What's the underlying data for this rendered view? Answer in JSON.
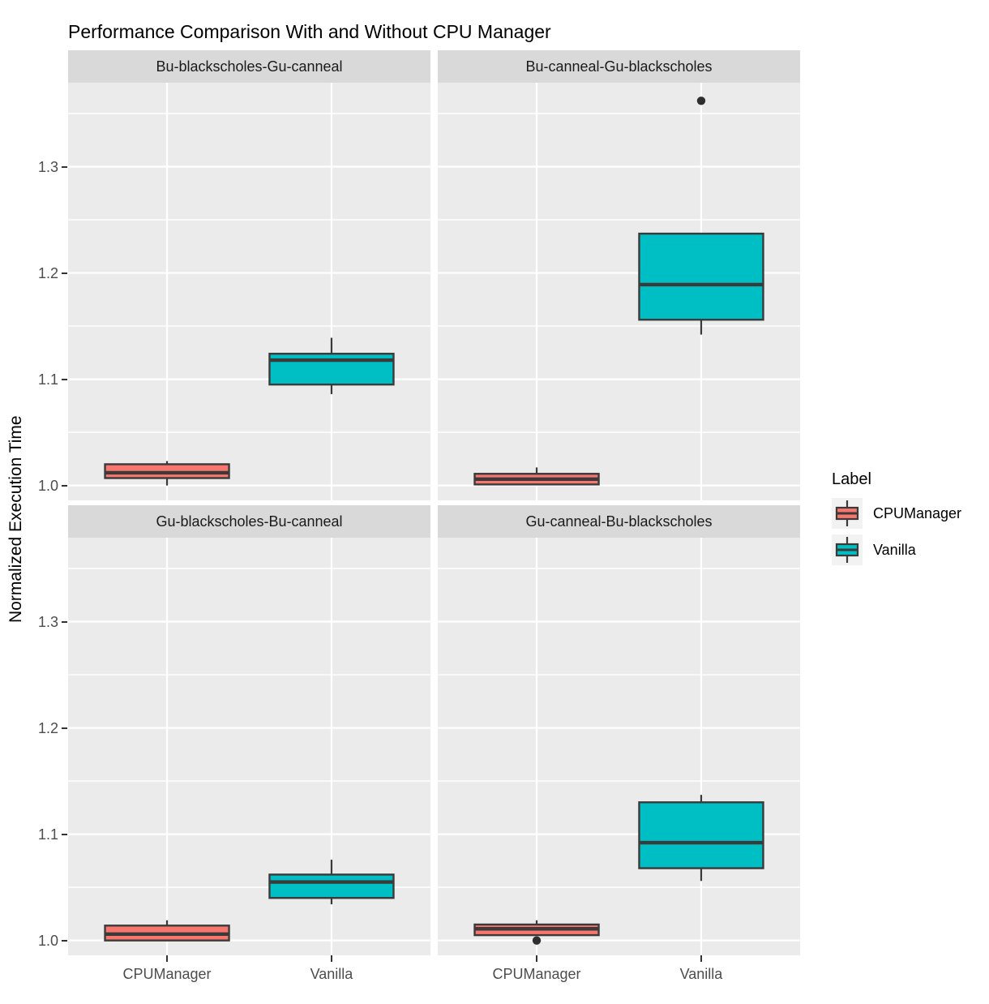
{
  "title": "Performance Comparison With and Without CPU Manager",
  "y_axis": {
    "label": "Normalized Execution Time",
    "ticks": [
      {
        "value": 1.0,
        "label": "1.0"
      },
      {
        "value": 1.1,
        "label": "1.1"
      },
      {
        "value": 1.2,
        "label": "1.2"
      },
      {
        "value": 1.3,
        "label": "1.3"
      }
    ],
    "minor_gridlines": [
      1.05,
      1.15,
      1.25,
      1.35
    ]
  },
  "x_axis": {
    "categories": [
      "CPUManager",
      "Vanilla"
    ]
  },
  "legend": {
    "title": "Label",
    "items": [
      {
        "label": "CPUManager",
        "color": "#F8766D"
      },
      {
        "label": "Vanilla",
        "color": "#00BFC4"
      }
    ]
  },
  "colors": {
    "cpumanager_fill": "#F8766D",
    "vanilla_fill": "#00BFC4",
    "box_border": "#3A3A3A",
    "outlier": "#2F2F2F",
    "panel_bg": "#EBEBEB",
    "strip_bg": "#D9D9D9",
    "gridline": "#FFFFFF",
    "axis_text": "#4D4D4D",
    "legend_key_bg": "#F2F2F2"
  },
  "chart_data": {
    "type": "boxplot",
    "title": "Performance Comparison With and Without CPU Manager",
    "ylabel": "Normalized Execution Time",
    "xlabel": "",
    "ylim": [
      0.986,
      1.379
    ],
    "y_major_ticks": [
      1.0,
      1.1,
      1.2,
      1.3
    ],
    "categories": [
      "CPUManager",
      "Vanilla"
    ],
    "legend_title": "Label",
    "legend_position": "right",
    "grid": true,
    "facets": [
      {
        "title": "Bu-blackscholes-Gu-canneal",
        "boxes": [
          {
            "group": "CPUManager",
            "min": 1.0,
            "q1": 1.007,
            "median": 1.012,
            "q3": 1.02,
            "max": 1.023,
            "outliers": []
          },
          {
            "group": "Vanilla",
            "min": 1.086,
            "q1": 1.095,
            "median": 1.118,
            "q3": 1.124,
            "max": 1.139,
            "outliers": []
          }
        ]
      },
      {
        "title": "Bu-canneal-Gu-blackscholes",
        "boxes": [
          {
            "group": "CPUManager",
            "min": 1.0,
            "q1": 1.001,
            "median": 1.006,
            "q3": 1.011,
            "max": 1.017,
            "outliers": []
          },
          {
            "group": "Vanilla",
            "min": 1.142,
            "q1": 1.156,
            "median": 1.189,
            "q3": 1.237,
            "max": 1.237,
            "outliers": [
              1.362
            ]
          }
        ]
      },
      {
        "title": "Gu-blackscholes-Bu-canneal",
        "boxes": [
          {
            "group": "CPUManager",
            "min": 1.0,
            "q1": 1.0,
            "median": 1.006,
            "q3": 1.014,
            "max": 1.019,
            "outliers": []
          },
          {
            "group": "Vanilla",
            "min": 1.034,
            "q1": 1.04,
            "median": 1.055,
            "q3": 1.062,
            "max": 1.076,
            "outliers": []
          }
        ]
      },
      {
        "title": "Gu-canneal-Bu-blackscholes",
        "boxes": [
          {
            "group": "CPUManager",
            "min": 1.005,
            "q1": 1.005,
            "median": 1.011,
            "q3": 1.015,
            "max": 1.019,
            "outliers": [
              1.0
            ]
          },
          {
            "group": "Vanilla",
            "min": 1.056,
            "q1": 1.068,
            "median": 1.092,
            "q3": 1.13,
            "max": 1.137,
            "outliers": []
          }
        ]
      }
    ]
  }
}
